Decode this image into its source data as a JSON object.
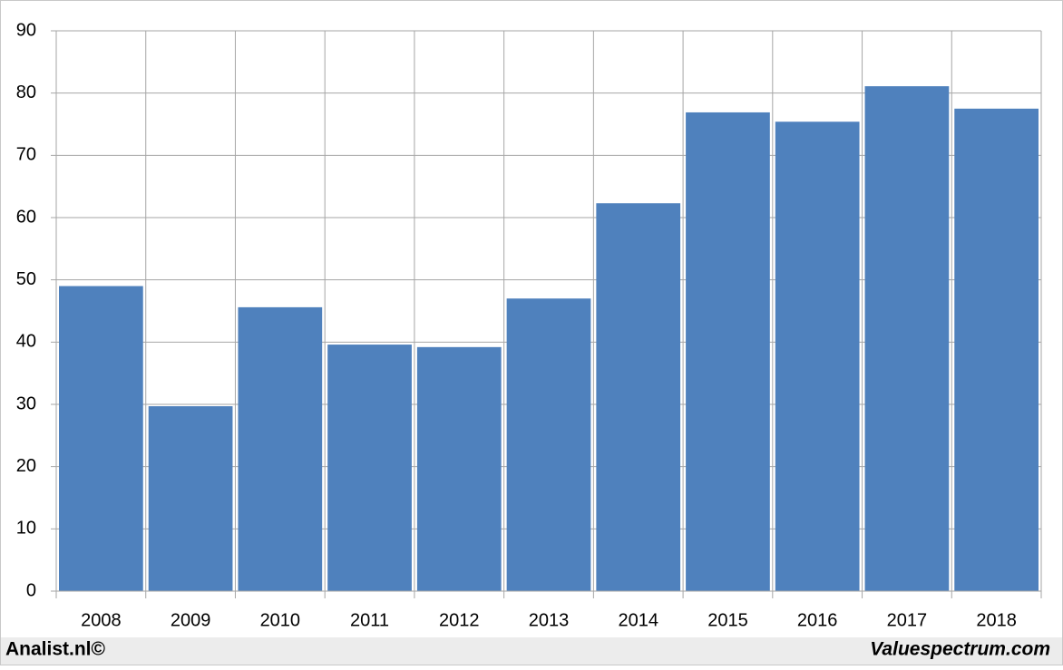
{
  "chart_data": {
    "type": "bar",
    "categories": [
      "2008",
      "2009",
      "2010",
      "2011",
      "2012",
      "2013",
      "2014",
      "2015",
      "2016",
      "2017",
      "2018"
    ],
    "values": [
      49,
      29.7,
      45.6,
      39.6,
      39.2,
      47,
      62.3,
      76.9,
      75.4,
      81.1,
      77.5
    ],
    "color": "#4f81bd",
    "ylim": [
      0,
      90
    ],
    "yticks": [
      0,
      10,
      20,
      30,
      40,
      50,
      60,
      70,
      80,
      90
    ],
    "grid": true,
    "credits": [
      "Analist.nl©",
      "Valuespectrum.com"
    ]
  }
}
